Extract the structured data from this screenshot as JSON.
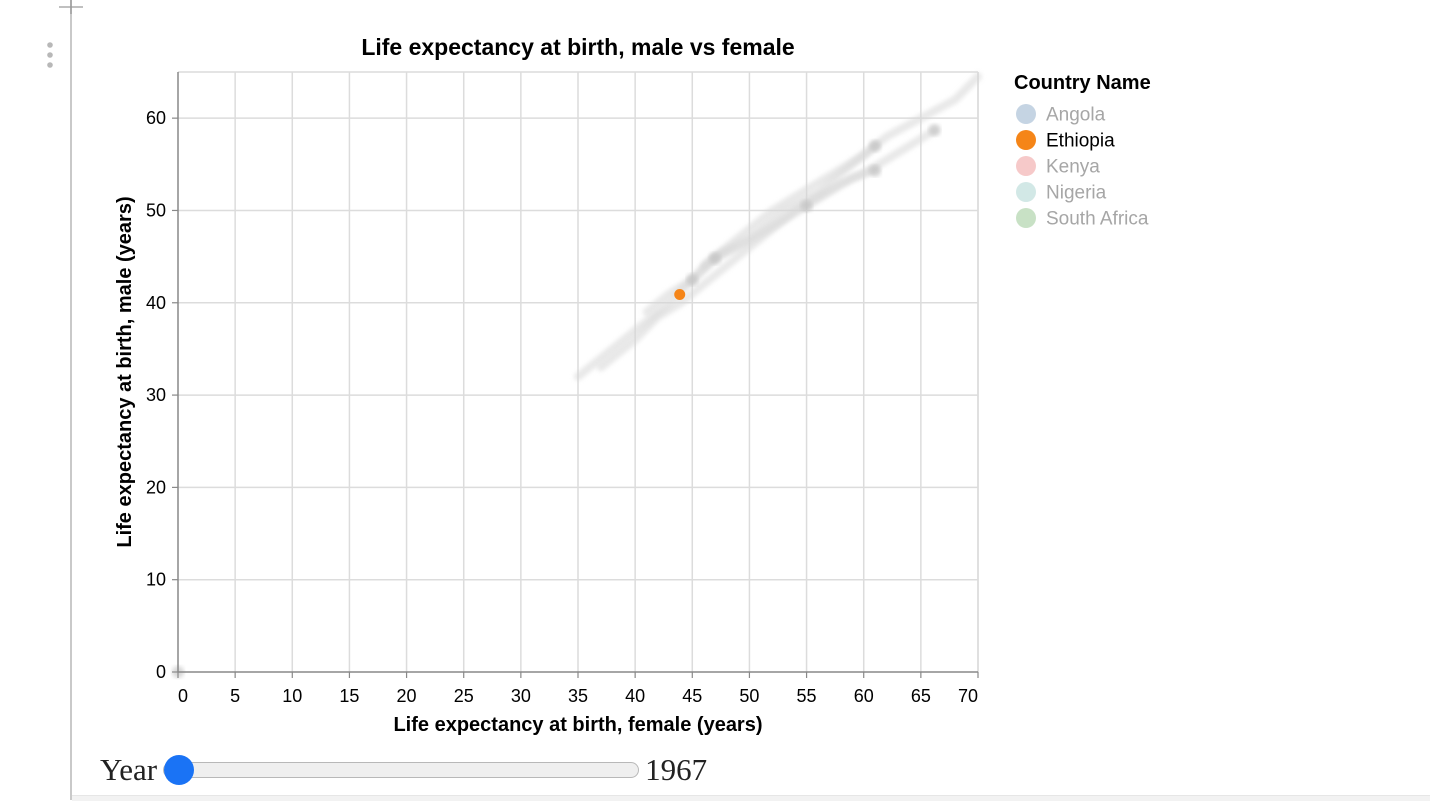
{
  "chart_data": {
    "type": "scatter",
    "title": "Life expectancy at birth, male vs female",
    "xlabel": "Life expectancy at birth, female (years)",
    "ylabel": "Life expectancy at birth, male (years)",
    "xlim": [
      0,
      70
    ],
    "ylim": [
      0,
      65
    ],
    "xticks": [
      "0",
      "5",
      "10",
      "15",
      "20",
      "25",
      "30",
      "35",
      "40",
      "45",
      "50",
      "55",
      "60",
      "65",
      "70"
    ],
    "yticks": [
      "0",
      "10",
      "20",
      "30",
      "40",
      "50",
      "60"
    ],
    "grid": true,
    "legend": {
      "title": "Country Name",
      "placement": "right",
      "items": [
        {
          "label": "Angola",
          "color": "#4c78a8",
          "active": false
        },
        {
          "label": "Ethiopia",
          "color": "#f58518",
          "active": true
        },
        {
          "label": "Kenya",
          "color": "#e45756",
          "active": false
        },
        {
          "label": "Nigeria",
          "color": "#72b7b2",
          "active": false
        },
        {
          "label": "South Africa",
          "color": "#54a24b",
          "active": false
        }
      ]
    },
    "series": [
      {
        "name": "Ethiopia",
        "x": [
          43.9
        ],
        "y": [
          40.9
        ],
        "color": "#f58518",
        "highlighted": true
      }
    ],
    "background_trails": [
      {
        "x": [
          35,
          38,
          41,
          43,
          45,
          47,
          50,
          53,
          56,
          59,
          62,
          65,
          68,
          70
        ],
        "y": [
          32,
          35,
          38,
          40,
          42.5,
          45,
          47,
          50,
          52,
          55,
          58,
          60,
          62,
          64.5
        ]
      },
      {
        "x": [
          37,
          40,
          42,
          44,
          46,
          48,
          50,
          52,
          54,
          56,
          58,
          60,
          62,
          64,
          66.2
        ],
        "y": [
          33,
          36,
          38.5,
          40,
          42,
          44,
          46,
          48,
          50,
          51.5,
          53,
          54,
          55.5,
          57,
          58.7
        ]
      },
      {
        "x": [
          46,
          48,
          50,
          52,
          54,
          56,
          58,
          60,
          61
        ],
        "y": [
          44,
          46,
          48,
          50,
          51.5,
          53,
          54.5,
          56,
          57
        ]
      },
      {
        "x": [
          41,
          43,
          45,
          47,
          49,
          51,
          53,
          55,
          57,
          59,
          61
        ],
        "y": [
          39,
          41,
          42.5,
          44.8,
          46,
          47.5,
          49,
          50.5,
          52,
          53.5,
          54.5
        ]
      }
    ],
    "background_points": [
      {
        "x": 47,
        "y": 44.8
      },
      {
        "x": 45,
        "y": 42.5
      },
      {
        "x": 55,
        "y": 50.5
      },
      {
        "x": 61,
        "y": 57
      },
      {
        "x": 61,
        "y": 54.3
      },
      {
        "x": 66.2,
        "y": 58.7
      },
      {
        "x": 0,
        "y": 0
      }
    ]
  },
  "slider": {
    "label": "Year",
    "value": "1967",
    "fraction": 0.0
  }
}
